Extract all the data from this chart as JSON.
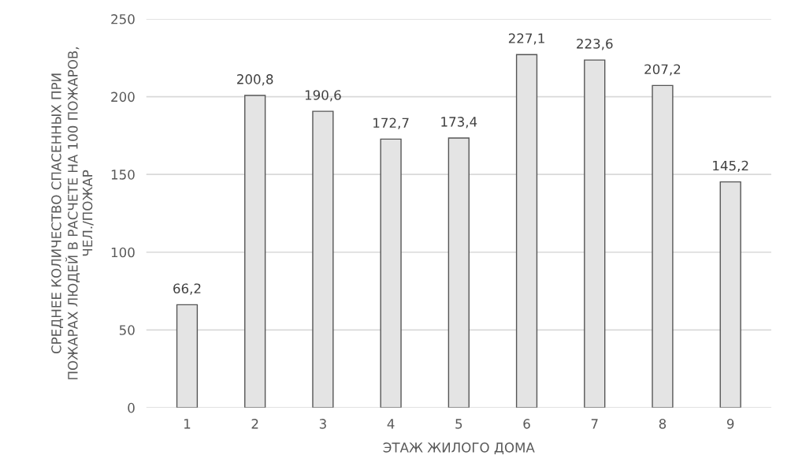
{
  "chart_data": {
    "type": "bar",
    "xlabel": "ЭТАЖ ЖИЛОГО ДОМА",
    "ylabel": "СРЕДНЕЕ КОЛИЧЕСТВО СПАСЕННЫХ ПРИ\nПОЖАРАХ ЛЮДЕЙ В РАСЧЕТЕ НА 100 ПОЖАРОВ,\nЧЕЛ./ПОЖАР",
    "categories": [
      "1",
      "2",
      "3",
      "4",
      "5",
      "6",
      "7",
      "8",
      "9"
    ],
    "values": [
      66.2,
      200.8,
      190.6,
      172.7,
      173.4,
      227.1,
      223.6,
      207.2,
      145.2
    ],
    "value_labels": [
      "66,2",
      "200,8",
      "190,6",
      "172,7",
      "173,4",
      "227,1",
      "223,6",
      "207,2",
      "145,2"
    ],
    "color": "#e4e4e4",
    "ylim": [
      0,
      250
    ],
    "yticks": [
      0,
      50,
      100,
      150,
      200,
      250
    ],
    "grid": "y",
    "legend": false
  }
}
